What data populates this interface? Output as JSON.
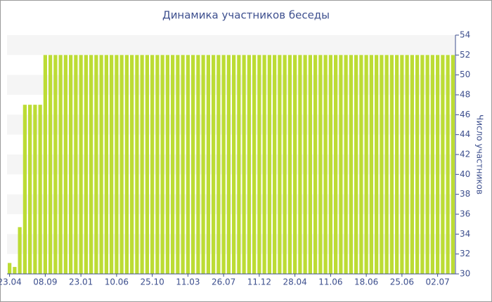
{
  "chart_data": {
    "type": "bar",
    "title": "Динамика участников беседы",
    "y_label": "Число участников",
    "categories": [
      "23.04",
      null,
      null,
      null,
      null,
      null,
      null,
      "08.09",
      null,
      null,
      null,
      null,
      null,
      null,
      "23.01",
      null,
      null,
      null,
      null,
      null,
      null,
      "10.06",
      null,
      null,
      null,
      null,
      null,
      null,
      "25.10",
      null,
      null,
      null,
      null,
      null,
      null,
      "11.03",
      null,
      null,
      null,
      null,
      null,
      null,
      "26.07",
      null,
      null,
      null,
      null,
      null,
      null,
      "11.12",
      null,
      null,
      null,
      null,
      null,
      null,
      "28.04",
      null,
      null,
      null,
      null,
      null,
      null,
      "11.06",
      null,
      null,
      null,
      null,
      null,
      null,
      "18.06",
      null,
      null,
      null,
      null,
      null,
      null,
      "25.06",
      null,
      null,
      null,
      null,
      null,
      null,
      "02.07",
      null,
      null,
      null
    ],
    "values": [
      31.1,
      30.7,
      34.7,
      47,
      47,
      47,
      47,
      52,
      52,
      52,
      52,
      52,
      52,
      52,
      52,
      52,
      52,
      52,
      52,
      52,
      52,
      52,
      52,
      52,
      52,
      52,
      52,
      52,
      52,
      52,
      52,
      52,
      52,
      52,
      52,
      52,
      52,
      52,
      52,
      52,
      52,
      52,
      52,
      52,
      52,
      52,
      52,
      52,
      52,
      52,
      52,
      52,
      52,
      52,
      52,
      52,
      52,
      52,
      52,
      52,
      52,
      52,
      52,
      52,
      52,
      52,
      52,
      52,
      52,
      52,
      52,
      52,
      52,
      52,
      52,
      52,
      52,
      52,
      52,
      52,
      52,
      52,
      52,
      52,
      52,
      52,
      52,
      52
    ],
    "color": "#bcdc34",
    "ylim": [
      30,
      54
    ],
    "yticks": [
      30,
      32,
      34,
      36,
      38,
      40,
      42,
      44,
      46,
      48,
      50,
      52,
      54
    ],
    "y_axis_side": "right",
    "grid_bands": true
  }
}
